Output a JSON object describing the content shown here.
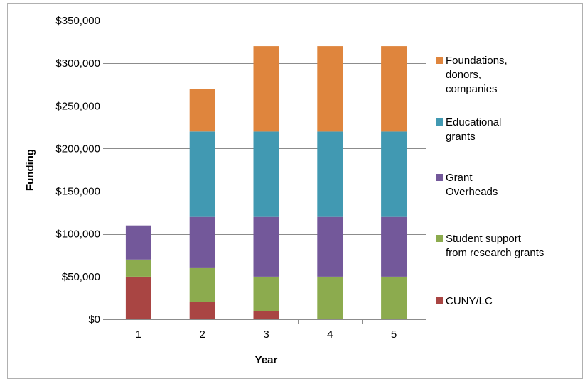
{
  "chart_data": {
    "type": "bar",
    "stacked": true,
    "title": "",
    "xlabel": "Year",
    "ylabel": "Funding",
    "categories": [
      "1",
      "2",
      "3",
      "4",
      "5"
    ],
    "ylim": [
      0,
      350000
    ],
    "yticks": [
      "$0",
      "$50,000",
      "$100,000",
      "$150,000",
      "$200,000",
      "$250,000",
      "$300,000",
      "$350,000"
    ],
    "ytick_values": [
      0,
      50000,
      100000,
      150000,
      200000,
      250000,
      300000,
      350000
    ],
    "grid": true,
    "legend_position": "right",
    "series": [
      {
        "name": "CUNY/LC",
        "color": "#a94543",
        "values": [
          50000,
          20000,
          10000,
          0,
          0
        ]
      },
      {
        "name": "Student support from research grants",
        "color": "#8cab4e",
        "values": [
          20000,
          40000,
          40000,
          50000,
          50000
        ]
      },
      {
        "name": "Grant Overheads",
        "color": "#73589a",
        "values": [
          40000,
          60000,
          70000,
          70000,
          70000
        ]
      },
      {
        "name": "Educational grants",
        "color": "#4199b2",
        "values": [
          0,
          100000,
          100000,
          100000,
          100000
        ]
      },
      {
        "name": "Foundations, donors, companies",
        "color": "#df853d",
        "values": [
          0,
          50000,
          100000,
          100000,
          100000
        ]
      }
    ],
    "legend_entries": [
      {
        "series": 4,
        "lines": [
          "Foundations,",
          "donors,",
          "companies"
        ]
      },
      {
        "series": 3,
        "lines": [
          "Educational",
          "grants"
        ]
      },
      {
        "series": 2,
        "lines": [
          "Grant",
          "Overheads"
        ]
      },
      {
        "series": 1,
        "lines": [
          "Student support",
          "from research grants"
        ]
      },
      {
        "series": 0,
        "lines": [
          "CUNY/LC"
        ]
      }
    ]
  }
}
